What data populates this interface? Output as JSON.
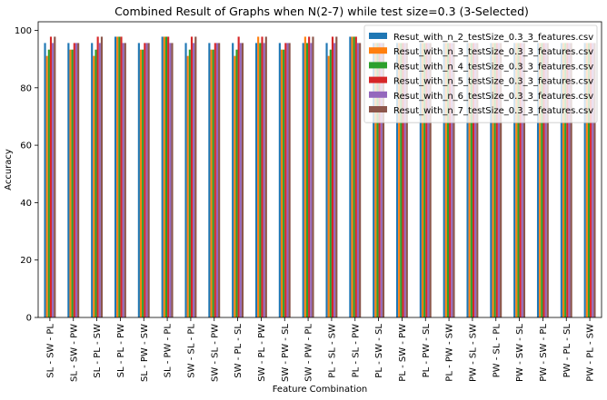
{
  "chart_data": {
    "type": "bar",
    "title": "Combined Result of Graphs when N(2-7) while test size=0.3 (3-Selected)",
    "xlabel": "Feature Combination",
    "ylabel": "Accuracy",
    "ylim": [
      0,
      103
    ],
    "yticks": [
      0,
      20,
      40,
      60,
      80,
      100
    ],
    "grid": false,
    "legend_position": "top-right",
    "categories": [
      "SL - SW - PL",
      "SL - SW - PW",
      "SL - PL - SW",
      "SL - PL - PW",
      "SL - PW - SW",
      "SL - PW - PL",
      "SW - SL - PL",
      "SW - SL - PW",
      "SW - PL - SL",
      "SW - PL - PW",
      "SW - PW - SL",
      "SW - PW - PL",
      "PL - SL - SW",
      "PL - SL - PW",
      "PL - SW - SL",
      "PL - SW - PW",
      "PL - PW - SL",
      "PL - PW - SW",
      "PW - SL - SW",
      "PW - SL - PL",
      "PW - SW - SL",
      "PW - SW - PL",
      "PW - PL - SL",
      "PW - PL - SW"
    ],
    "series": [
      {
        "name": "Resut_with_n_2_testSize_0.3_3_features.csv",
        "color": "#1f77b4",
        "values": [
          95.6,
          95.6,
          95.6,
          97.8,
          95.6,
          97.8,
          95.6,
          95.6,
          95.6,
          95.6,
          95.6,
          95.6,
          95.6,
          97.8,
          95.6,
          95.6,
          95.6,
          95.6,
          95.6,
          95.6,
          95.6,
          95.6,
          95.6,
          95.6
        ]
      },
      {
        "name": "Resut_with_n_3_testSize_0.3_3_features.csv",
        "color": "#ff7f0e",
        "values": [
          91.1,
          93.3,
          91.1,
          97.8,
          93.3,
          97.8,
          91.1,
          93.3,
          91.1,
          97.8,
          93.3,
          97.8,
          91.1,
          97.8,
          95.6,
          95.6,
          95.6,
          95.6,
          95.6,
          95.6,
          95.6,
          95.6,
          95.6,
          95.6
        ]
      },
      {
        "name": "Resut_with_n_4_testSize_0.3_3_features.csv",
        "color": "#2ca02c",
        "values": [
          93.3,
          93.3,
          93.3,
          97.8,
          93.3,
          97.8,
          93.3,
          93.3,
          93.3,
          95.6,
          93.3,
          95.6,
          93.3,
          97.8,
          95.6,
          95.6,
          95.6,
          95.6,
          95.6,
          95.6,
          95.6,
          95.6,
          95.6,
          95.6
        ]
      },
      {
        "name": "Resut_with_n_5_testSize_0.3_3_features.csv",
        "color": "#d62728",
        "values": [
          97.8,
          95.6,
          97.8,
          97.8,
          95.6,
          97.8,
          97.8,
          95.6,
          97.8,
          97.8,
          95.6,
          97.8,
          97.8,
          97.8,
          95.6,
          95.6,
          95.6,
          95.6,
          95.6,
          95.6,
          95.6,
          95.6,
          95.6,
          95.6
        ]
      },
      {
        "name": "Resut_with_n_6_testSize_0.3_3_features.csv",
        "color": "#9467bd",
        "values": [
          95.6,
          95.6,
          95.6,
          95.6,
          95.6,
          95.6,
          95.6,
          95.6,
          95.6,
          95.6,
          95.6,
          95.6,
          95.6,
          95.6,
          95.6,
          95.6,
          95.6,
          95.6,
          95.6,
          95.6,
          95.6,
          95.6,
          95.6,
          95.6
        ]
      },
      {
        "name": "Resut_with_n_7_testSize_0.3_3_features.csv",
        "color": "#8c564b",
        "values": [
          97.8,
          95.6,
          97.8,
          95.6,
          95.6,
          95.6,
          97.8,
          95.6,
          95.6,
          97.8,
          95.6,
          97.8,
          97.8,
          95.6,
          95.6,
          95.6,
          95.6,
          95.6,
          95.6,
          95.6,
          95.6,
          95.6,
          95.6,
          95.6
        ]
      }
    ]
  }
}
